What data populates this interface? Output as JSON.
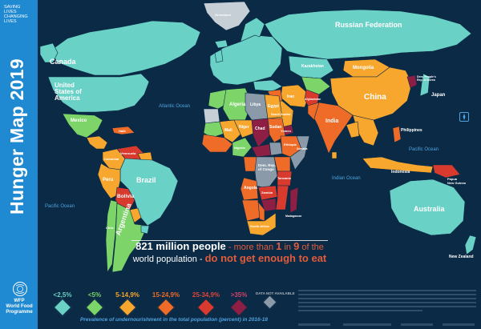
{
  "sidebar": {
    "tagline": [
      "SAVING",
      "LIVES",
      "CHANGING",
      "LIVES"
    ],
    "title": "Hunger Map 2019",
    "logo_icon": "wfp-logo-icon",
    "org_name": [
      "WFP",
      "World Food",
      "Programme"
    ]
  },
  "colors": {
    "ocean": "#0b2a45",
    "sidebar": "#1f89d1",
    "lt2_5": "#6ad1c7",
    "c5": "#7dd56a",
    "c5_14_9": "#f7a72e",
    "c15_24_9": "#ef6b28",
    "c25_34_9": "#d93a2e",
    "gt35": "#8c1f43",
    "na": "#8a9aa8",
    "none": "#c6cfd6"
  },
  "headline": {
    "line1_a": "821 million people",
    "line1_b": " - more than ",
    "line1_num1": "1",
    "line1_c": " in ",
    "line1_num2": "9",
    "line1_d": " of the",
    "line2_a": "world population - ",
    "line2_b": "do not get enough to eat"
  },
  "legend": {
    "items": [
      {
        "label": "<2,5%",
        "color": "#6ad1c7"
      },
      {
        "label": "<5%",
        "color": "#7dd56a"
      },
      {
        "label": "5-14,9%",
        "color": "#f7a72e"
      },
      {
        "label": "15-24,9%",
        "color": "#ef6b28"
      },
      {
        "label": "25-34,9%",
        "color": "#d93a2e"
      },
      {
        "label": ">35%",
        "color": "#8c1f43"
      },
      {
        "label": "DATA NOT AVAILABLE",
        "color": "#8a9aa8"
      }
    ],
    "caption": "Prevalence of undernourishment in the total population (percent) in 2016-18"
  },
  "labels": {
    "russia": "Russian Federation",
    "canada": "Canada",
    "usa": [
      "United",
      "States of",
      "America"
    ],
    "mexico": "Mexico",
    "brazil": "Brazil",
    "bolivia": "Bolivia",
    "argentina": "Argentina",
    "peru": "Peru",
    "china": "China",
    "india": "India",
    "mongolia": "Mongolia",
    "kazakhstan": "Kazakhstan",
    "algeria": "Algeria",
    "libya": "Libya",
    "egypt": "Egypt",
    "chad": "Chad",
    "sudan": "Sudan",
    "niger": "Niger",
    "mali": "Mali",
    "drc": [
      "Dem. Rep.",
      "of Congo"
    ],
    "angola": "Angola",
    "australia": "Australia",
    "indonesia": "Indonesia",
    "japan": "Japan",
    "new_zealand": "New Zealand",
    "philippines": "Philippines",
    "papua": [
      "Papua",
      "New Guinea"
    ],
    "iran": "Iran",
    "saudi": "Saudi Arabia",
    "nigeria": "Nigeria",
    "ethiopia": "Ethiopia",
    "somalia": "Somalia",
    "tanzania": "Tanzania",
    "zambia": "Zambia",
    "madagascar": "Madagascar",
    "south_africa": "South Africa",
    "korea": [
      "Dem. People's",
      "Rep. of Korea"
    ],
    "afghanistan": "Afghanistan",
    "yemen": "Yemen",
    "haiti": "Haiti",
    "colombia": "Colombia",
    "venezuela": "Venezuela",
    "chile": "Chile",
    "greenland": "Greenland"
  },
  "oceans": {
    "atlantic": "Atlantic Ocean",
    "pacific_left": "Pacific Ocean",
    "pacific_right": "Pacific Ocean",
    "indian": "Indian Ocean"
  }
}
